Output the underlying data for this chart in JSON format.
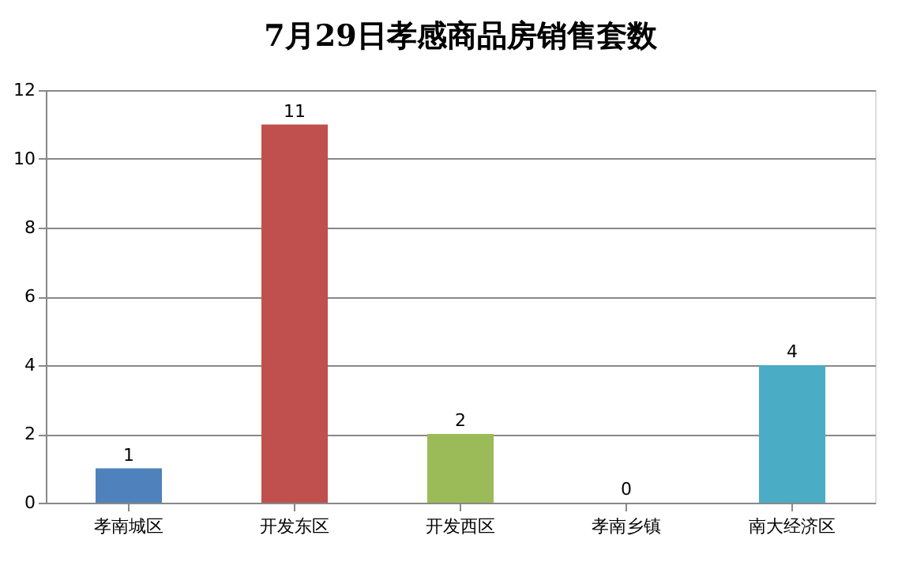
{
  "chart_data": {
    "type": "bar",
    "title": "7月29日孝感商品房销售套数",
    "categories": [
      "孝南城区",
      "开发东区",
      "开发西区",
      "孝南乡镇",
      "南大经济区"
    ],
    "values": [
      1,
      11,
      2,
      0,
      4
    ],
    "colors": [
      "#4f81bd",
      "#c0504d",
      "#9bbb59",
      "#8064a2",
      "#4bacc6"
    ],
    "ylim": [
      0,
      12
    ],
    "yticks": [
      0,
      2,
      4,
      6,
      8,
      10,
      12
    ],
    "grid": "y",
    "data_labels": true,
    "legend": false
  }
}
